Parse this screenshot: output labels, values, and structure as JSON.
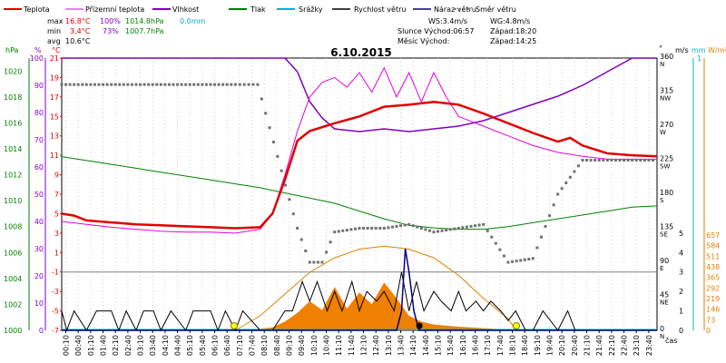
{
  "chart_data": {
    "type": "line",
    "title": "6.10.2015",
    "legend": [
      {
        "label": "Teplota",
        "color": "#e00000"
      },
      {
        "label": "Přízemní teplota",
        "color": "#e000e0"
      },
      {
        "label": "Vlhkost",
        "color": "#8000c0"
      },
      {
        "label": "Tlak",
        "color": "#008000"
      },
      {
        "label": "Srážky",
        "color": "#00b0d0"
      },
      {
        "label": "Rychlost větru",
        "color": "#000000"
      },
      {
        "label": "Náraz větru",
        "color": "#000080"
      },
      {
        "label": "Směr větru",
        "color": "#808080"
      }
    ],
    "stats": {
      "max_label": "max",
      "max_temp": "16.8°C",
      "max_hum": "100%",
      "max_press": "1014.8hPa",
      "max_rain": "0.0mm",
      "min_label": "min",
      "min_temp": "3.4°C",
      "min_hum": "73%",
      "min_press": "1007.7hPa",
      "avg_label": "avg",
      "avg_temp": "10.6°C"
    },
    "info": {
      "ws": "WS:3.4m/s",
      "wg": "WG:4.8m/s",
      "sun_rise": "Slunce Východ:06:57",
      "sun_set": "Západ:18:20",
      "moon_rise": "Měsíc  Východ:",
      "moon_set": "Západ:14:25"
    },
    "axis_labels": {
      "hpa": "hPa",
      "pct": "%",
      "degc": "°C",
      "deg": "°",
      "ms": "m/s",
      "mm": "mm",
      "wm2": "W/m²",
      "time": "čas"
    },
    "hpa_ticks": [
      "1020",
      "1018",
      "1016",
      "1014",
      "1012",
      "1010",
      "1008",
      "1006",
      "1004",
      "1002",
      "1000"
    ],
    "pct_ticks": [
      "100",
      "90",
      "80",
      "70",
      "60",
      "50",
      "40",
      "30",
      "20",
      "10",
      "0"
    ],
    "temp_ticks": [
      "21",
      "19",
      "17",
      "15",
      "13",
      "11",
      "9",
      "7",
      "5",
      "3",
      "1",
      "-1",
      "-3",
      "-5",
      "-7"
    ],
    "dir_ticks": [
      "360 N",
      "315 NW",
      "270 W",
      "225 SW",
      "180 S",
      "135 SE",
      "90 E",
      "45 NE",
      "0 N"
    ],
    "ms_ticks": [
      "5",
      "4",
      "3",
      "2",
      "1",
      "0"
    ],
    "mm_ticks": [
      "1"
    ],
    "solar_ticks": [
      "657",
      "584",
      "511",
      "438",
      "365",
      "292",
      "219",
      "146",
      "73",
      "0"
    ],
    "times": [
      "00:10",
      "00:40",
      "01:10",
      "01:40",
      "02:10",
      "02:40",
      "03:10",
      "03:40",
      "04:10",
      "04:40",
      "05:10",
      "05:40",
      "06:10",
      "06:40",
      "07:10",
      "07:40",
      "08:10",
      "08:40",
      "09:10",
      "09:40",
      "10:10",
      "10:40",
      "11:10",
      "11:40",
      "12:10",
      "12:40",
      "13:10",
      "13:40",
      "14:10",
      "14:40",
      "15:10",
      "15:40",
      "16:10",
      "16:40",
      "17:10",
      "17:40",
      "18:10",
      "18:40",
      "19:10",
      "19:40",
      "20:10",
      "20:40",
      "21:10",
      "21:40",
      "22:10",
      "22:40",
      "23:10",
      "23:40"
    ],
    "series": [
      {
        "name": "Teplota",
        "unit": "°C",
        "points": [
          [
            0,
            5.0
          ],
          [
            0.5,
            4.8
          ],
          [
            1,
            4.3
          ],
          [
            2,
            4.1
          ],
          [
            3,
            3.9
          ],
          [
            4,
            3.8
          ],
          [
            5,
            3.7
          ],
          [
            6,
            3.6
          ],
          [
            7,
            3.5
          ],
          [
            8,
            3.6
          ],
          [
            8.5,
            5.0
          ],
          [
            9,
            8.5
          ],
          [
            9.5,
            12.5
          ],
          [
            10,
            13.5
          ],
          [
            11,
            14.3
          ],
          [
            12,
            15.0
          ],
          [
            12.5,
            15.5
          ],
          [
            13,
            16.0
          ],
          [
            14,
            16.2
          ],
          [
            15,
            16.5
          ],
          [
            16,
            16.2
          ],
          [
            17,
            15.3
          ],
          [
            18,
            14.3
          ],
          [
            19,
            13.3
          ],
          [
            20,
            12.4
          ],
          [
            20.5,
            12.8
          ],
          [
            21,
            12.0
          ],
          [
            22,
            11.2
          ],
          [
            23,
            11.0
          ],
          [
            24,
            10.9
          ]
        ]
      },
      {
        "name": "Přízemní teplota",
        "unit": "°C",
        "points": [
          [
            0,
            4.2
          ],
          [
            1,
            3.9
          ],
          [
            2,
            3.6
          ],
          [
            3,
            3.4
          ],
          [
            4,
            3.2
          ],
          [
            5,
            3.1
          ],
          [
            6,
            3.1
          ],
          [
            7,
            3.0
          ],
          [
            8,
            3.4
          ],
          [
            8.5,
            5.0
          ],
          [
            9,
            9.0
          ],
          [
            9.5,
            13.5
          ],
          [
            10,
            17.0
          ],
          [
            10.5,
            18.5
          ],
          [
            11,
            19.0
          ],
          [
            11.5,
            18.0
          ],
          [
            12,
            19.5
          ],
          [
            12.5,
            17.5
          ],
          [
            13,
            20.0
          ],
          [
            13.5,
            17.0
          ],
          [
            14,
            19.5
          ],
          [
            14.5,
            16.5
          ],
          [
            15,
            19.5
          ],
          [
            15.5,
            17.0
          ],
          [
            16,
            15.0
          ],
          [
            17,
            14.0
          ],
          [
            18,
            13.0
          ],
          [
            19,
            12.0
          ],
          [
            20,
            11.3
          ],
          [
            21,
            10.9
          ],
          [
            22,
            10.6
          ],
          [
            23,
            10.6
          ],
          [
            24,
            10.6
          ]
        ]
      },
      {
        "name": "Vlhkost",
        "unit": "%",
        "points": [
          [
            0,
            100
          ],
          [
            4,
            100
          ],
          [
            8,
            100
          ],
          [
            9,
            100
          ],
          [
            9.5,
            95
          ],
          [
            10,
            84
          ],
          [
            10.5,
            78
          ],
          [
            11,
            74
          ],
          [
            12,
            73
          ],
          [
            13,
            74
          ],
          [
            14,
            73
          ],
          [
            15,
            74
          ],
          [
            16,
            75
          ],
          [
            17,
            77
          ],
          [
            18,
            80
          ],
          [
            19,
            83
          ],
          [
            20,
            86
          ],
          [
            21,
            90
          ],
          [
            22,
            95
          ],
          [
            23,
            100
          ],
          [
            24,
            100
          ]
        ]
      },
      {
        "name": "Tlak",
        "unit": "hPa",
        "points": [
          [
            0,
            1013.4
          ],
          [
            1,
            1013.1
          ],
          [
            2,
            1012.8
          ],
          [
            3,
            1012.5
          ],
          [
            4,
            1012.2
          ],
          [
            5,
            1011.9
          ],
          [
            6,
            1011.6
          ],
          [
            7,
            1011.3
          ],
          [
            8,
            1011.0
          ],
          [
            9,
            1010.6
          ],
          [
            10,
            1010.2
          ],
          [
            11,
            1009.8
          ],
          [
            12,
            1009.2
          ],
          [
            13,
            1008.6
          ],
          [
            14,
            1008.1
          ],
          [
            15,
            1007.9
          ],
          [
            16,
            1007.8
          ],
          [
            17,
            1007.8
          ],
          [
            18,
            1008.0
          ],
          [
            19,
            1008.3
          ],
          [
            20,
            1008.6
          ],
          [
            21,
            1008.9
          ],
          [
            22,
            1009.2
          ],
          [
            23,
            1009.5
          ],
          [
            24,
            1009.6
          ]
        ]
      },
      {
        "name": "Srážky",
        "unit": "mm",
        "points": [
          [
            0,
            0
          ],
          [
            24,
            0
          ]
        ]
      },
      {
        "name": "Rychlost větru",
        "unit": "m/s",
        "points": [
          [
            0,
            1
          ],
          [
            0.2,
            0
          ],
          [
            0.5,
            1
          ],
          [
            1,
            0
          ],
          [
            1.4,
            1
          ],
          [
            2,
            1
          ],
          [
            2.3,
            0
          ],
          [
            2.6,
            1
          ],
          [
            3,
            0
          ],
          [
            3.3,
            1
          ],
          [
            3.7,
            1
          ],
          [
            4,
            0
          ],
          [
            4.4,
            1
          ],
          [
            5,
            0
          ],
          [
            5.3,
            1
          ],
          [
            6,
            1
          ],
          [
            6.3,
            0
          ],
          [
            6.6,
            1
          ],
          [
            7,
            0
          ],
          [
            7.3,
            1
          ],
          [
            8,
            0
          ],
          [
            8.5,
            0
          ],
          [
            9,
            1
          ],
          [
            9.3,
            1
          ],
          [
            9.7,
            2.5
          ],
          [
            10,
            1.5
          ],
          [
            10.3,
            2.5
          ],
          [
            10.7,
            1
          ],
          [
            11,
            2
          ],
          [
            11.3,
            1
          ],
          [
            11.7,
            2.5
          ],
          [
            12,
            1
          ],
          [
            12.3,
            2
          ],
          [
            12.7,
            1.5
          ],
          [
            13,
            2
          ],
          [
            13.4,
            1
          ],
          [
            13.7,
            3
          ],
          [
            14,
            1
          ],
          [
            14.3,
            2.5
          ],
          [
            14.6,
            1
          ],
          [
            15,
            2
          ],
          [
            15.3,
            1.5
          ],
          [
            15.7,
            1
          ],
          [
            16,
            2
          ],
          [
            16.3,
            1
          ],
          [
            16.7,
            1.5
          ],
          [
            17,
            1
          ],
          [
            17.3,
            1.5
          ],
          [
            17.7,
            1
          ],
          [
            18,
            0.5
          ],
          [
            18.3,
            1
          ],
          [
            18.7,
            0
          ],
          [
            19,
            0
          ],
          [
            19.4,
            1
          ],
          [
            20,
            0
          ],
          [
            20.4,
            1
          ],
          [
            20.7,
            0
          ],
          [
            21,
            0
          ],
          [
            21.5,
            0
          ],
          [
            22,
            0
          ],
          [
            22.5,
            0
          ],
          [
            23,
            0
          ],
          [
            23.5,
            0
          ]
        ]
      },
      {
        "name": "Náraz větru",
        "unit": "m/s",
        "points": [
          [
            0,
            0
          ],
          [
            13.5,
            0
          ],
          [
            13.7,
            1
          ],
          [
            13.85,
            4.2
          ],
          [
            14.0,
            3
          ],
          [
            14.2,
            1
          ],
          [
            14.4,
            0
          ],
          [
            24,
            0
          ]
        ]
      },
      {
        "name": "Směr větru",
        "unit": "°",
        "points": [
          [
            0,
            325
          ],
          [
            1,
            325
          ],
          [
            2,
            325
          ],
          [
            3,
            325
          ],
          [
            4,
            325
          ],
          [
            5,
            325
          ],
          [
            6,
            325
          ],
          [
            7,
            325
          ],
          [
            7.9,
            325
          ],
          [
            9.5,
            135
          ],
          [
            10,
            90
          ],
          [
            10.5,
            90
          ],
          [
            11,
            130
          ],
          [
            12,
            135
          ],
          [
            13,
            135
          ],
          [
            14,
            140
          ],
          [
            15,
            130
          ],
          [
            16,
            135
          ],
          [
            17,
            140
          ],
          [
            18,
            90
          ],
          [
            19,
            95
          ],
          [
            20,
            180
          ],
          [
            21,
            225
          ],
          [
            22,
            225
          ],
          [
            23,
            225
          ],
          [
            24,
            225
          ]
        ]
      },
      {
        "name": "Sluneční záření",
        "unit": "W/m²",
        "points": [
          [
            7.5,
            0
          ],
          [
            8.5,
            20
          ],
          [
            9,
            60
          ],
          [
            9.5,
            120
          ],
          [
            10,
            200
          ],
          [
            10.5,
            140
          ],
          [
            11,
            300
          ],
          [
            11.5,
            150
          ],
          [
            12,
            260
          ],
          [
            12.5,
            180
          ],
          [
            13,
            330
          ],
          [
            13.5,
            220
          ],
          [
            14,
            100
          ],
          [
            14.5,
            60
          ],
          [
            15,
            40
          ],
          [
            16,
            25
          ],
          [
            17,
            15
          ],
          [
            18,
            5
          ],
          [
            18.3,
            0
          ]
        ]
      },
      {
        "name": "Teoretické záření",
        "unit": "W/m²",
        "points": [
          [
            7,
            0
          ],
          [
            8,
            100
          ],
          [
            9,
            250
          ],
          [
            10,
            400
          ],
          [
            11,
            500
          ],
          [
            12,
            560
          ],
          [
            13,
            580
          ],
          [
            14,
            560
          ],
          [
            15,
            500
          ],
          [
            16,
            380
          ],
          [
            17,
            220
          ],
          [
            18,
            80
          ],
          [
            18.3,
            0
          ]
        ]
      }
    ],
    "xlim": [
      0,
      24
    ],
    "ylim_temp": [
      -7,
      21
    ]
  }
}
